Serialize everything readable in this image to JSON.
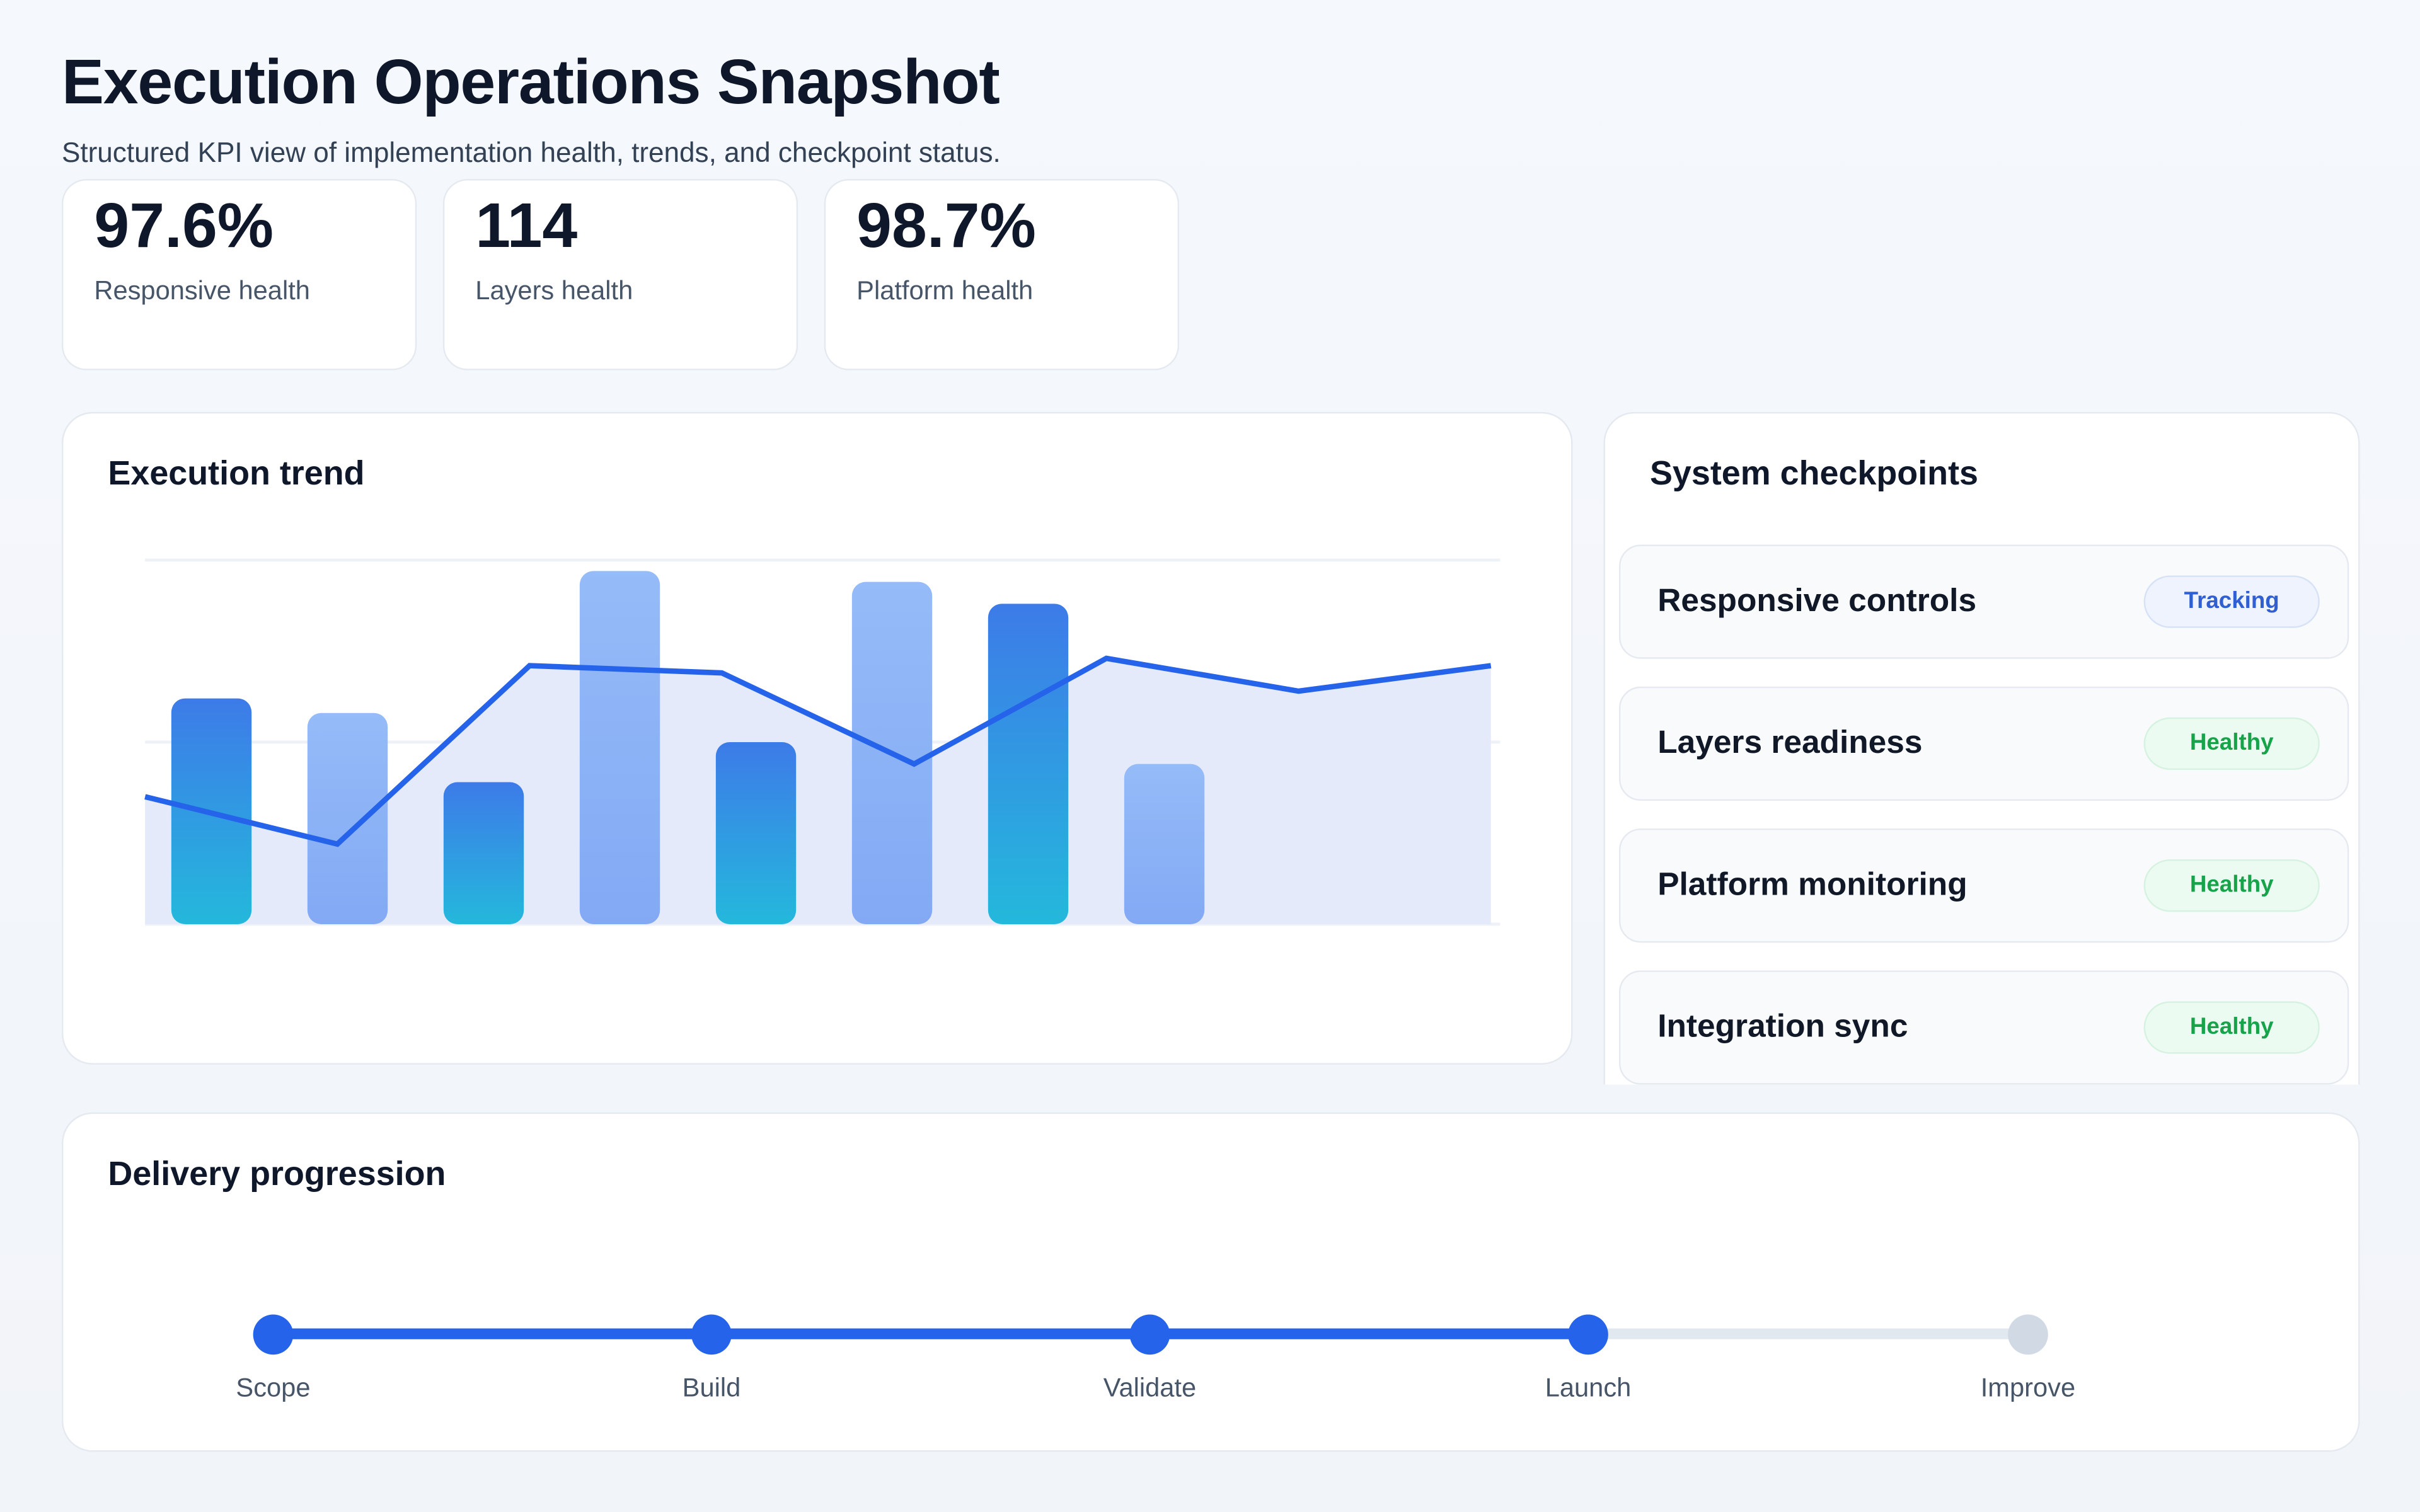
{
  "header": {
    "title": "Execution Operations Snapshot",
    "subtitle": "Structured KPI view of implementation health, trends, and checkpoint status."
  },
  "kpis": [
    {
      "value": "97.6%",
      "label": "Responsive health"
    },
    {
      "value": "114",
      "label": "Layers health"
    },
    {
      "value": "98.7%",
      "label": "Platform health"
    }
  ],
  "trend": {
    "title": "Execution trend"
  },
  "chart_data": {
    "type": "bar",
    "title": "Execution trend",
    "ylim": [
      0,
      100
    ],
    "grid": true,
    "bars": {
      "values": [
        62,
        58,
        39,
        97,
        50,
        94,
        88,
        44
      ],
      "colors": [
        "gradient",
        "light",
        "gradient",
        "light",
        "gradient",
        "light",
        "gradient",
        "light"
      ]
    },
    "line": {
      "type": "area",
      "values": [
        35,
        22,
        71,
        69,
        44,
        73,
        64,
        71
      ]
    },
    "colors": {
      "bar_gradient_top": "#3d7be8",
      "bar_gradient_bottom": "#24b8dc",
      "bar_light_top": "#95bbf8",
      "bar_light_bottom": "#83a9f5",
      "line": "#2563eb",
      "area": "#e4eafa"
    }
  },
  "checkpoints": {
    "title": "System checkpoints",
    "items": [
      {
        "name": "Responsive controls",
        "status": "Tracking",
        "kind": "tracking"
      },
      {
        "name": "Layers readiness",
        "status": "Healthy",
        "kind": "healthy"
      },
      {
        "name": "Platform monitoring",
        "status": "Healthy",
        "kind": "healthy"
      },
      {
        "name": "Integration sync",
        "status": "Healthy",
        "kind": "healthy"
      }
    ]
  },
  "delivery": {
    "title": "Delivery progression",
    "steps": [
      "Scope",
      "Build",
      "Validate",
      "Launch",
      "Improve"
    ],
    "completed_steps": 4,
    "colors": {
      "active": "#2563eb",
      "inactive": "#d1d9e4"
    }
  }
}
